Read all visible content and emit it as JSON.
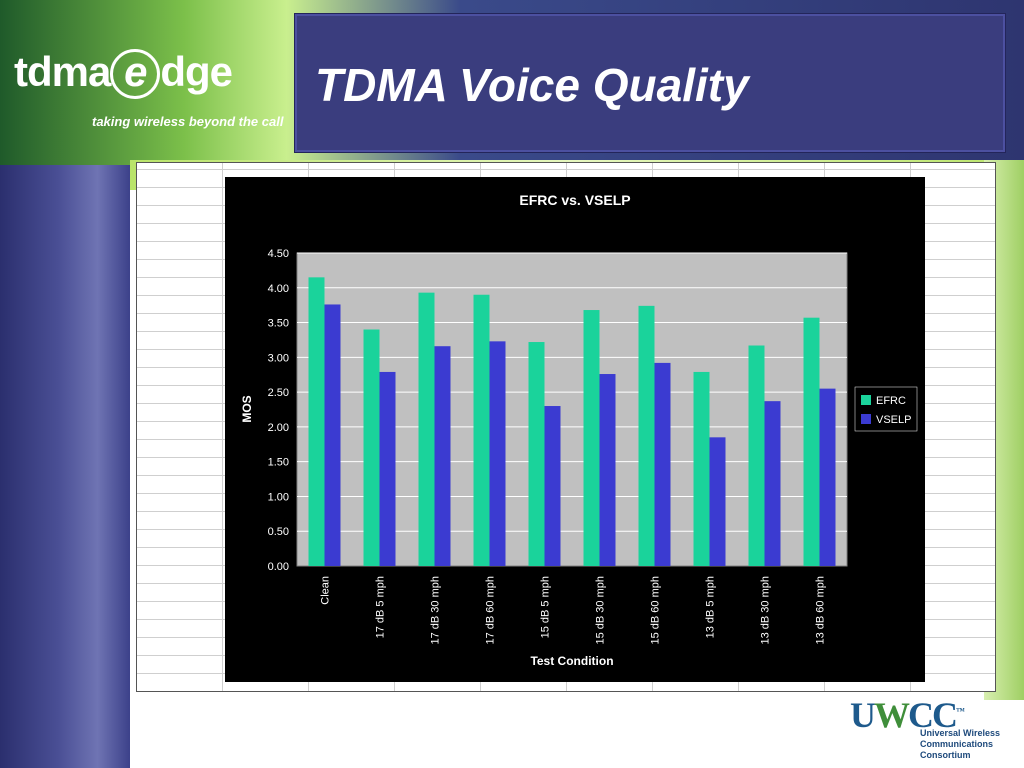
{
  "brand": {
    "logo_text_pre": "tdma",
    "logo_text_e": "e",
    "logo_text_post": "dge",
    "tagline": "taking wireless beyond the call"
  },
  "slide": {
    "title": "TDMA Voice Quality"
  },
  "footer_logo": {
    "mark_u": "U",
    "mark_w": "W",
    "mark_cc": "CC",
    "tm": "™",
    "name_lines": [
      "Universal Wireless",
      "Communications",
      "Consortium"
    ]
  },
  "colors": {
    "efrc": "#1ad39b",
    "vselp": "#3b3bd1",
    "plot_bg": "#c0c0c0",
    "chart_bg": "#000000",
    "text": "#ffffff"
  },
  "chart_data": {
    "type": "bar",
    "title": "EFRC vs. VSELP",
    "xlabel": "Test Condition",
    "ylabel": "MOS",
    "ylim": [
      0,
      4.5
    ],
    "yticks": [
      "0.00",
      "0.50",
      "1.00",
      "1.50",
      "2.00",
      "2.50",
      "3.00",
      "3.50",
      "4.00",
      "4.50"
    ],
    "grid": true,
    "legend": "right",
    "categories": [
      "Clean",
      "17 dB 5 mph",
      "17 dB 30 mph",
      "17 dB 60 mph",
      "15 dB 5 mph",
      "15 dB 30 mph",
      "15 dB 60 mph",
      "13 dB 5 mph",
      "13 dB 30 mph",
      "13 dB 60 mph"
    ],
    "series": [
      {
        "name": "EFRC",
        "values": [
          4.15,
          3.4,
          3.93,
          3.9,
          3.22,
          3.68,
          3.74,
          2.79,
          3.17,
          3.57
        ]
      },
      {
        "name": "VSELP",
        "values": [
          3.76,
          2.79,
          3.16,
          3.23,
          2.3,
          2.76,
          2.92,
          1.85,
          2.37,
          2.55
        ]
      }
    ]
  }
}
